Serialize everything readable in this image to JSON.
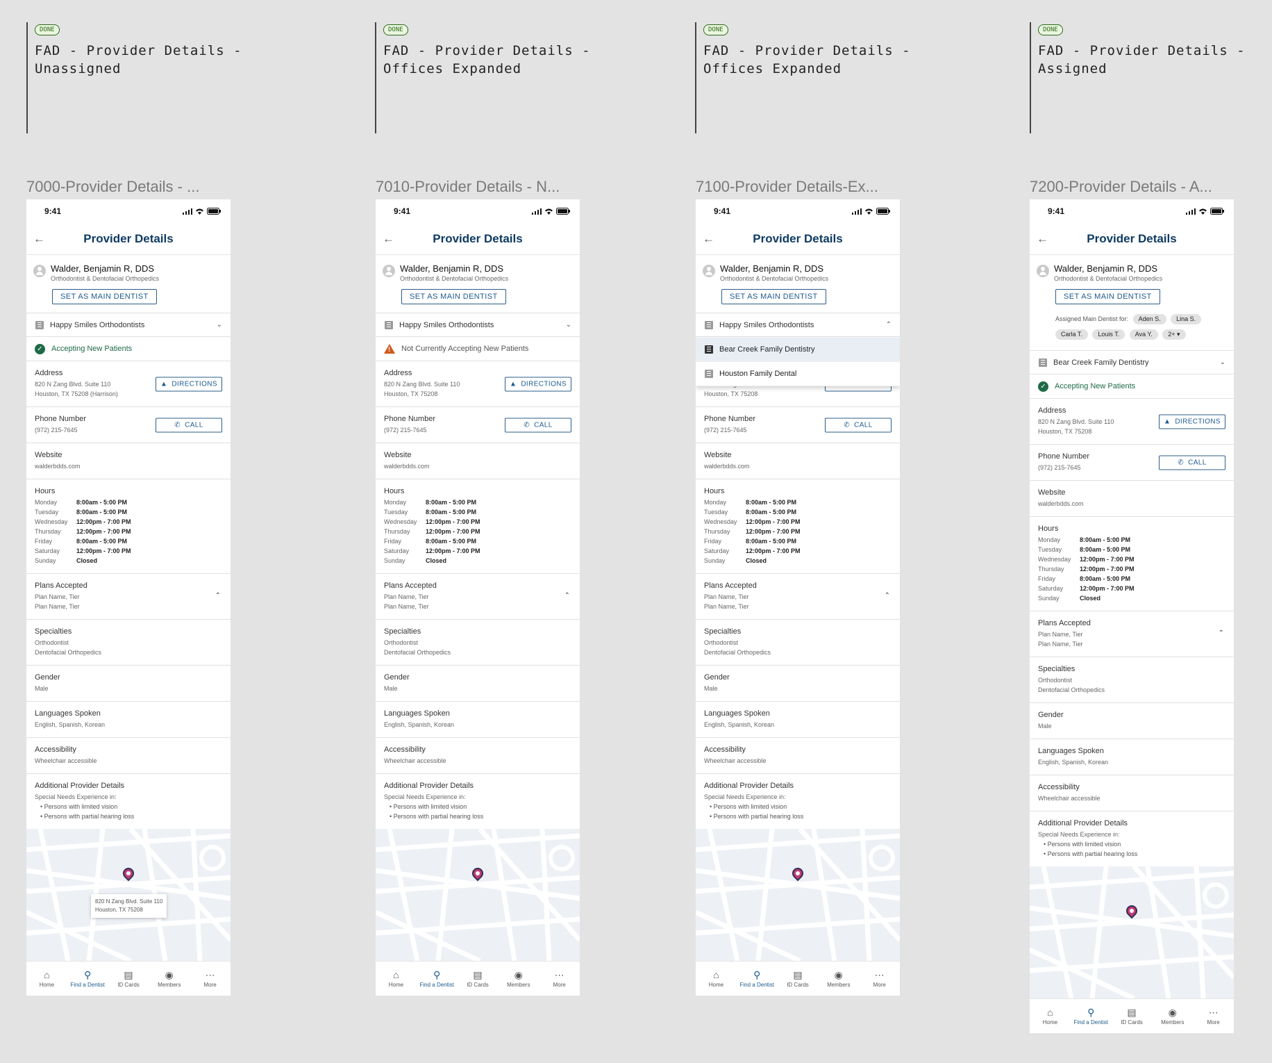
{
  "notes": [
    {
      "badge": "DONE",
      "title": "FAD - Provider Details -\nUnassigned"
    },
    {
      "badge": "DONE",
      "title": "FAD - Provider Details -\nOffices Expanded"
    },
    {
      "badge": "DONE",
      "title": "FAD - Provider Details -\nOffices Expanded"
    },
    {
      "badge": "DONE",
      "title": "FAD - Provider Details -\nAssigned"
    }
  ],
  "frames": [
    {
      "label": "7000-Provider Details - ..."
    },
    {
      "label": "7010-Provider Details - N..."
    },
    {
      "label": "7100-Provider Details-Ex..."
    },
    {
      "label": "7200-Provider Details - A..."
    }
  ],
  "common": {
    "time": "9:41",
    "screen_title": "Provider Details",
    "provider_name": "Walder, Benjamin R, DDS",
    "provider_specialty": "Orthodontist & Dentofacial Orthopedics",
    "set_main_label": "SET AS MAIN DENTIST",
    "address_label": "Address",
    "address_line1": "820 N Zang Blvd. Suite 110",
    "address_line2": "Houston, TX 75208",
    "address_line2_harrison": "Houston, TX 75208 (Harrison)",
    "directions_label": "DIRECTIONS",
    "phone_label": "Phone Number",
    "phone_value": "(972) 215-7645",
    "call_label": "CALL",
    "website_label": "Website",
    "website_value": "walderbdds.com",
    "hours_label": "Hours",
    "hours": [
      {
        "day": "Monday",
        "time": "8:00am - 5:00 PM"
      },
      {
        "day": "Tuesday",
        "time": "8:00am - 5:00 PM"
      },
      {
        "day": "Wednesday",
        "time": "12:00pm - 7:00 PM"
      },
      {
        "day": "Thursday",
        "time": "12:00pm - 7:00 PM"
      },
      {
        "day": "Friday",
        "time": "8:00am - 5:00 PM"
      },
      {
        "day": "Saturday",
        "time": "12:00pm - 7:00 PM"
      },
      {
        "day": "Sunday",
        "time": "Closed"
      }
    ],
    "plans_label": "Plans Accepted",
    "plan1": "Plan Name, Tier",
    "plan2": "Plan Name, Tier",
    "specialties_label": "Specialties",
    "spec1": "Orthodontist",
    "spec2": "Dentofacial Orthopedics",
    "gender_label": "Gender",
    "gender_value": "Male",
    "languages_label": "Languages Spoken",
    "languages_value": "English, Spanish, Korean",
    "accessibility_label": "Accessibility",
    "accessibility_value": "Wheelchair accessible",
    "additional_label": "Additional Provider Details",
    "additional_intro": "Special Needs Experience in:",
    "additional_b1": "Persons with limited vision",
    "additional_b2": "Persons with partial hearing loss",
    "map_tip_line1": "820 N Zang Blvd. Suite 110",
    "map_tip_line2": "Houston, TX 75208",
    "accepting": "Accepting New Patients",
    "not_accepting": "Not Currently Accepting New Patients",
    "office_happy": "Happy Smiles Orthodontists",
    "office_bear": "Bear Creek Family Dentistry",
    "office_houston": "Houston Family Dental",
    "assigned_label": "Assigned Main Dentist for:",
    "chips": [
      "Aden S.",
      "Lina S.",
      "Carla T.",
      "Louis T.",
      "Ava Y.",
      "2+ ▾"
    ]
  },
  "tabs": [
    {
      "label": "Home",
      "icon": "home-icon"
    },
    {
      "label": "Find a Dentist",
      "icon": "search-icon"
    },
    {
      "label": "ID Cards",
      "icon": "id-card-icon"
    },
    {
      "label": "Members",
      "icon": "members-icon"
    },
    {
      "label": "More",
      "icon": "more-icon"
    }
  ],
  "colors": {
    "brand": "#0e3b63",
    "accent": "#1c5a8e",
    "success": "#1e6a46",
    "warning": "#d2581c",
    "pin": "#c23b73"
  }
}
